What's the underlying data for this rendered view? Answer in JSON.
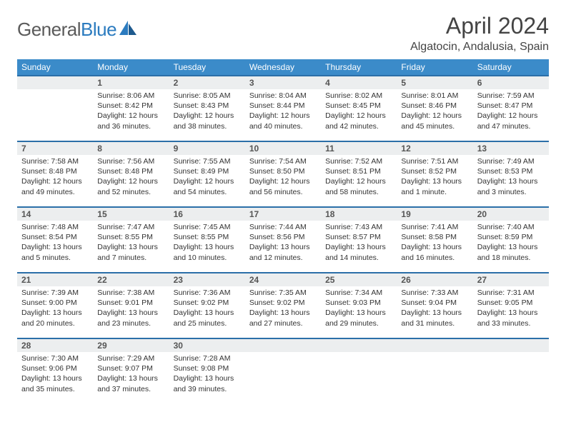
{
  "logo": {
    "brandA": "General",
    "brandB": "Blue"
  },
  "title": "April 2024",
  "location": "Algatocin, Andalusia, Spain",
  "colors": {
    "header_bg": "#3b8bc9",
    "header_text": "#ffffff",
    "dayhead_bg": "#eceeef",
    "dayhead_border": "#2b6fa8",
    "logo_blue": "#2b7bbf",
    "text": "#333333"
  },
  "weekdays": [
    "Sunday",
    "Monday",
    "Tuesday",
    "Wednesday",
    "Thursday",
    "Friday",
    "Saturday"
  ],
  "weeks": [
    [
      {
        "n": "",
        "sr": "",
        "ss": "",
        "dl": ""
      },
      {
        "n": "1",
        "sr": "Sunrise: 8:06 AM",
        "ss": "Sunset: 8:42 PM",
        "dl": "Daylight: 12 hours and 36 minutes."
      },
      {
        "n": "2",
        "sr": "Sunrise: 8:05 AM",
        "ss": "Sunset: 8:43 PM",
        "dl": "Daylight: 12 hours and 38 minutes."
      },
      {
        "n": "3",
        "sr": "Sunrise: 8:04 AM",
        "ss": "Sunset: 8:44 PM",
        "dl": "Daylight: 12 hours and 40 minutes."
      },
      {
        "n": "4",
        "sr": "Sunrise: 8:02 AM",
        "ss": "Sunset: 8:45 PM",
        "dl": "Daylight: 12 hours and 42 minutes."
      },
      {
        "n": "5",
        "sr": "Sunrise: 8:01 AM",
        "ss": "Sunset: 8:46 PM",
        "dl": "Daylight: 12 hours and 45 minutes."
      },
      {
        "n": "6",
        "sr": "Sunrise: 7:59 AM",
        "ss": "Sunset: 8:47 PM",
        "dl": "Daylight: 12 hours and 47 minutes."
      }
    ],
    [
      {
        "n": "7",
        "sr": "Sunrise: 7:58 AM",
        "ss": "Sunset: 8:48 PM",
        "dl": "Daylight: 12 hours and 49 minutes."
      },
      {
        "n": "8",
        "sr": "Sunrise: 7:56 AM",
        "ss": "Sunset: 8:48 PM",
        "dl": "Daylight: 12 hours and 52 minutes."
      },
      {
        "n": "9",
        "sr": "Sunrise: 7:55 AM",
        "ss": "Sunset: 8:49 PM",
        "dl": "Daylight: 12 hours and 54 minutes."
      },
      {
        "n": "10",
        "sr": "Sunrise: 7:54 AM",
        "ss": "Sunset: 8:50 PM",
        "dl": "Daylight: 12 hours and 56 minutes."
      },
      {
        "n": "11",
        "sr": "Sunrise: 7:52 AM",
        "ss": "Sunset: 8:51 PM",
        "dl": "Daylight: 12 hours and 58 minutes."
      },
      {
        "n": "12",
        "sr": "Sunrise: 7:51 AM",
        "ss": "Sunset: 8:52 PM",
        "dl": "Daylight: 13 hours and 1 minute."
      },
      {
        "n": "13",
        "sr": "Sunrise: 7:49 AM",
        "ss": "Sunset: 8:53 PM",
        "dl": "Daylight: 13 hours and 3 minutes."
      }
    ],
    [
      {
        "n": "14",
        "sr": "Sunrise: 7:48 AM",
        "ss": "Sunset: 8:54 PM",
        "dl": "Daylight: 13 hours and 5 minutes."
      },
      {
        "n": "15",
        "sr": "Sunrise: 7:47 AM",
        "ss": "Sunset: 8:55 PM",
        "dl": "Daylight: 13 hours and 7 minutes."
      },
      {
        "n": "16",
        "sr": "Sunrise: 7:45 AM",
        "ss": "Sunset: 8:55 PM",
        "dl": "Daylight: 13 hours and 10 minutes."
      },
      {
        "n": "17",
        "sr": "Sunrise: 7:44 AM",
        "ss": "Sunset: 8:56 PM",
        "dl": "Daylight: 13 hours and 12 minutes."
      },
      {
        "n": "18",
        "sr": "Sunrise: 7:43 AM",
        "ss": "Sunset: 8:57 PM",
        "dl": "Daylight: 13 hours and 14 minutes."
      },
      {
        "n": "19",
        "sr": "Sunrise: 7:41 AM",
        "ss": "Sunset: 8:58 PM",
        "dl": "Daylight: 13 hours and 16 minutes."
      },
      {
        "n": "20",
        "sr": "Sunrise: 7:40 AM",
        "ss": "Sunset: 8:59 PM",
        "dl": "Daylight: 13 hours and 18 minutes."
      }
    ],
    [
      {
        "n": "21",
        "sr": "Sunrise: 7:39 AM",
        "ss": "Sunset: 9:00 PM",
        "dl": "Daylight: 13 hours and 20 minutes."
      },
      {
        "n": "22",
        "sr": "Sunrise: 7:38 AM",
        "ss": "Sunset: 9:01 PM",
        "dl": "Daylight: 13 hours and 23 minutes."
      },
      {
        "n": "23",
        "sr": "Sunrise: 7:36 AM",
        "ss": "Sunset: 9:02 PM",
        "dl": "Daylight: 13 hours and 25 minutes."
      },
      {
        "n": "24",
        "sr": "Sunrise: 7:35 AM",
        "ss": "Sunset: 9:02 PM",
        "dl": "Daylight: 13 hours and 27 minutes."
      },
      {
        "n": "25",
        "sr": "Sunrise: 7:34 AM",
        "ss": "Sunset: 9:03 PM",
        "dl": "Daylight: 13 hours and 29 minutes."
      },
      {
        "n": "26",
        "sr": "Sunrise: 7:33 AM",
        "ss": "Sunset: 9:04 PM",
        "dl": "Daylight: 13 hours and 31 minutes."
      },
      {
        "n": "27",
        "sr": "Sunrise: 7:31 AM",
        "ss": "Sunset: 9:05 PM",
        "dl": "Daylight: 13 hours and 33 minutes."
      }
    ],
    [
      {
        "n": "28",
        "sr": "Sunrise: 7:30 AM",
        "ss": "Sunset: 9:06 PM",
        "dl": "Daylight: 13 hours and 35 minutes."
      },
      {
        "n": "29",
        "sr": "Sunrise: 7:29 AM",
        "ss": "Sunset: 9:07 PM",
        "dl": "Daylight: 13 hours and 37 minutes."
      },
      {
        "n": "30",
        "sr": "Sunrise: 7:28 AM",
        "ss": "Sunset: 9:08 PM",
        "dl": "Daylight: 13 hours and 39 minutes."
      },
      {
        "n": "",
        "sr": "",
        "ss": "",
        "dl": ""
      },
      {
        "n": "",
        "sr": "",
        "ss": "",
        "dl": ""
      },
      {
        "n": "",
        "sr": "",
        "ss": "",
        "dl": ""
      },
      {
        "n": "",
        "sr": "",
        "ss": "",
        "dl": ""
      }
    ]
  ]
}
